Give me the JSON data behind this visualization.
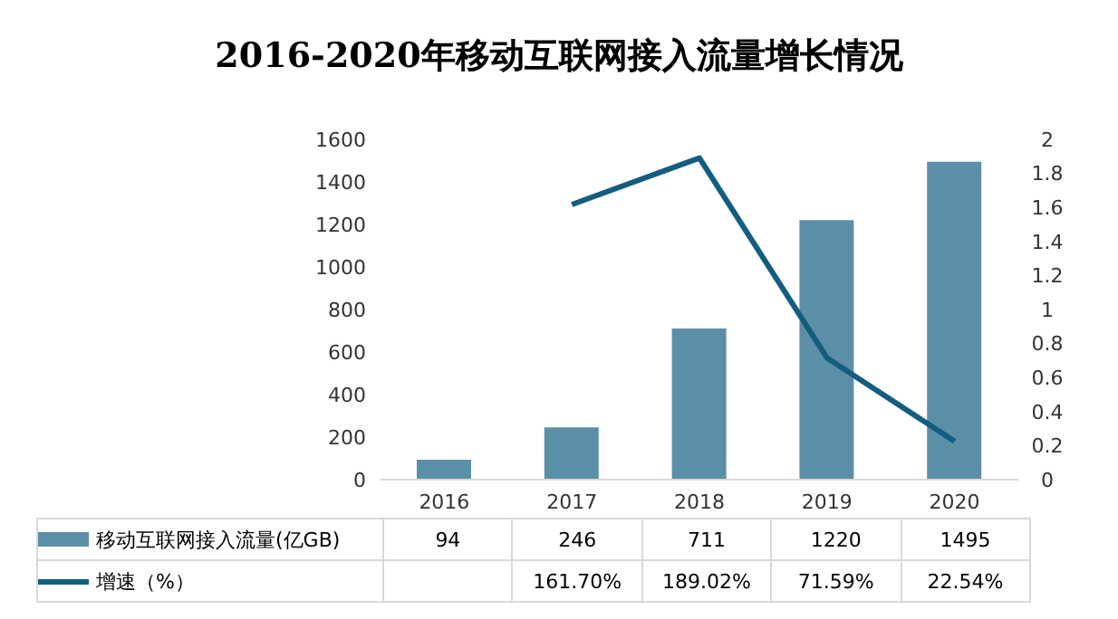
{
  "chart_data": {
    "type": "bar",
    "title": "2016-2020年移动互联网接入流量增长情况",
    "categories": [
      "2016",
      "2017",
      "2018",
      "2019",
      "2020"
    ],
    "series": [
      {
        "name": "移动互联网接入流量(亿GB)",
        "color": "#5b8fa7",
        "values": [
          94,
          246,
          711,
          1220,
          1495
        ],
        "value_labels": [
          "94",
          "246",
          "711",
          "1220",
          "1495"
        ]
      },
      {
        "name": "增速（%）",
        "type": "line",
        "axis": "y2",
        "color": "#135e7f",
        "values": [
          null,
          1.617,
          1.8902,
          0.7159,
          0.2254
        ],
        "value_labels": [
          null,
          "161.70%",
          "189.02%",
          "71.59%",
          "22.54%"
        ]
      }
    ],
    "ylim": [
      0,
      1600
    ],
    "yticks": [
      0,
      200,
      400,
      600,
      800,
      1000,
      1200,
      1400,
      1600
    ],
    "y2lim": [
      0,
      2
    ],
    "y2ticks": [
      0,
      0.2,
      0.4,
      0.6,
      0.8,
      1,
      1.2,
      1.4,
      1.6,
      1.8,
      2
    ],
    "grid": false,
    "legend": "bottom",
    "marker": "none"
  }
}
